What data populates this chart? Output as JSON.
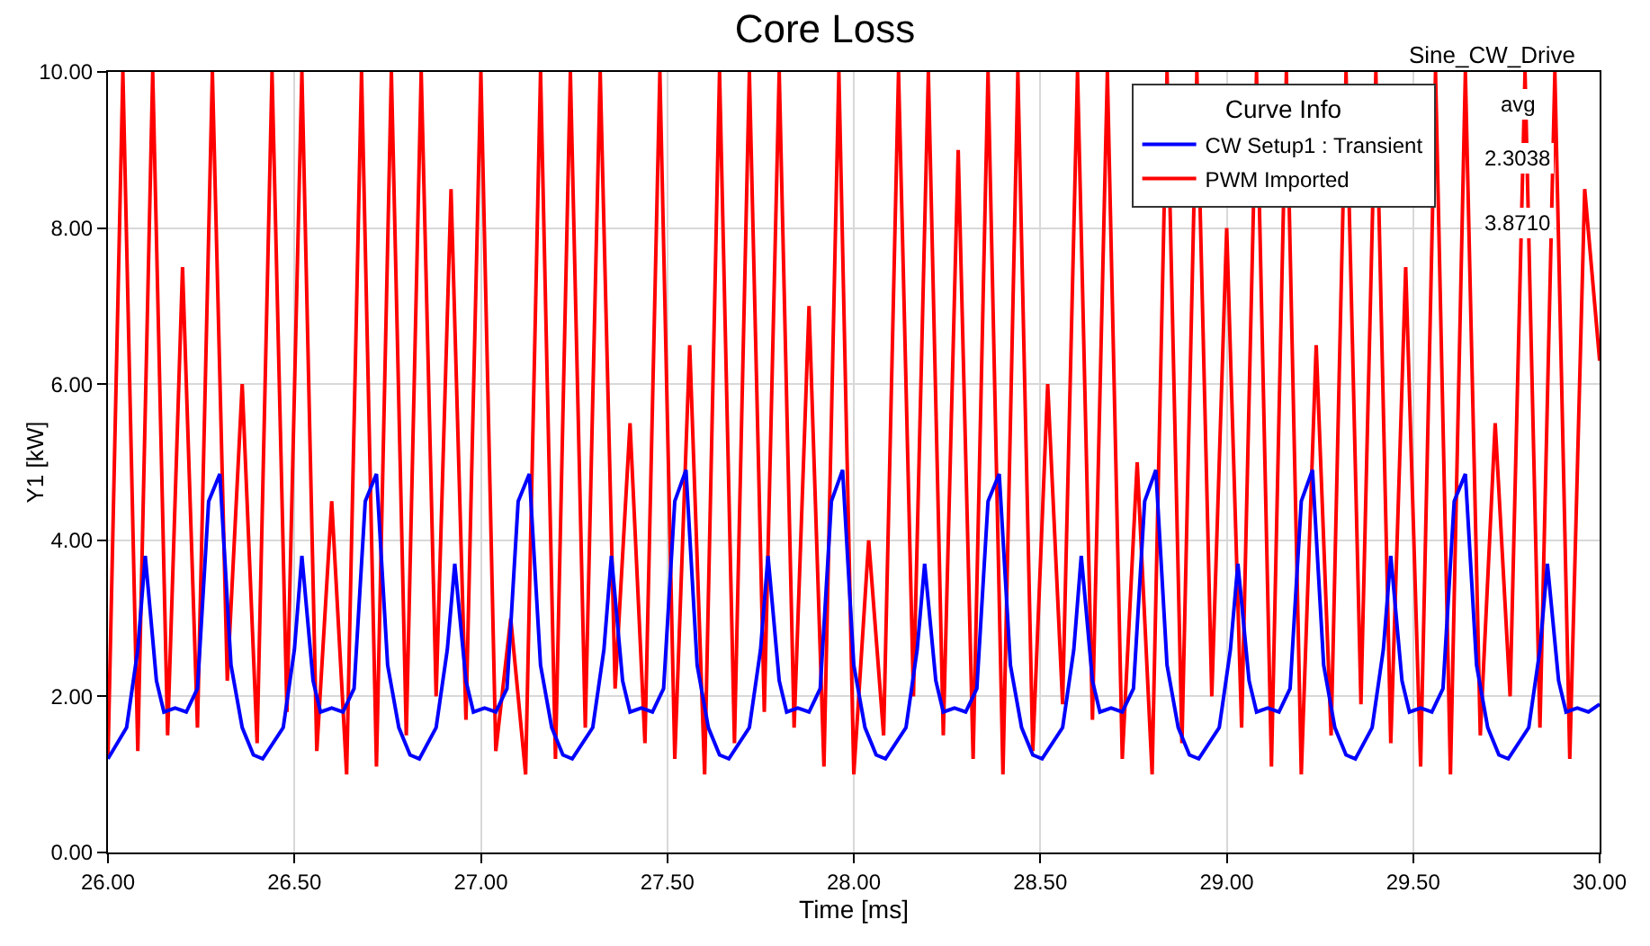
{
  "chart_data": {
    "type": "line",
    "title": "Core Loss",
    "subtitle": "Sine_CW_Drive",
    "xlabel": "Time [ms]",
    "ylabel": "Y1 [kW]",
    "legend_title": "Curve Info",
    "annotations": [
      "avg",
      "2.3038",
      "3.8710"
    ],
    "xlim": [
      26,
      30
    ],
    "ylim": [
      0,
      10
    ],
    "xticks": [
      {
        "value": 26,
        "label": "26.00"
      },
      {
        "value": 26.5,
        "label": "26.50"
      },
      {
        "value": 27,
        "label": "27.00"
      },
      {
        "value": 27.5,
        "label": "27.50"
      },
      {
        "value": 28,
        "label": "28.00"
      },
      {
        "value": 28.5,
        "label": "28.50"
      },
      {
        "value": 29,
        "label": "29.00"
      },
      {
        "value": 29.5,
        "label": "29.50"
      },
      {
        "value": 30,
        "label": "30.00"
      }
    ],
    "yticks": [
      {
        "value": 0,
        "label": "0.00"
      },
      {
        "value": 2,
        "label": "2.00"
      },
      {
        "value": 4,
        "label": "4.00"
      },
      {
        "value": 6,
        "label": "6.00"
      },
      {
        "value": 8,
        "label": "8.00"
      },
      {
        "value": 10,
        "label": "10.00"
      }
    ],
    "grid": true,
    "legend": "top right",
    "marker": "none",
    "line_style": "solid",
    "series": [
      {
        "name": "CW Setup1 : Transient",
        "color": "#0000ff",
        "x": [
          26.0,
          26.05,
          26.08,
          26.1,
          26.13,
          26.15,
          26.18,
          26.21,
          26.24,
          26.27,
          26.3,
          26.33,
          26.36,
          26.39,
          26.415,
          26.47,
          26.5,
          26.52,
          26.55,
          26.57,
          26.6,
          26.63,
          26.66,
          26.69,
          26.72,
          26.75,
          26.78,
          26.81,
          26.835,
          26.88,
          26.91,
          26.93,
          26.96,
          26.98,
          27.01,
          27.04,
          27.07,
          27.1,
          27.13,
          27.16,
          27.19,
          27.22,
          27.245,
          27.3,
          27.33,
          27.35,
          27.38,
          27.4,
          27.43,
          27.46,
          27.49,
          27.52,
          27.55,
          27.58,
          27.61,
          27.64,
          27.665,
          27.72,
          27.75,
          27.77,
          27.8,
          27.82,
          27.85,
          27.88,
          27.91,
          27.94,
          27.97,
          28.0,
          28.03,
          28.06,
          28.085,
          28.14,
          28.17,
          28.19,
          28.22,
          28.24,
          28.27,
          28.3,
          28.33,
          28.36,
          28.39,
          28.42,
          28.45,
          28.48,
          28.505,
          28.56,
          28.59,
          28.61,
          28.64,
          28.66,
          28.69,
          28.72,
          28.75,
          28.78,
          28.81,
          28.84,
          28.87,
          28.9,
          28.925,
          28.98,
          29.01,
          29.03,
          29.06,
          29.08,
          29.11,
          29.14,
          29.17,
          29.2,
          29.23,
          29.26,
          29.29,
          29.32,
          29.345,
          29.39,
          29.42,
          29.44,
          29.47,
          29.49,
          29.52,
          29.55,
          29.58,
          29.61,
          29.64,
          29.67,
          29.7,
          29.73,
          29.755,
          29.81,
          29.84,
          29.86,
          29.89,
          29.91,
          29.94,
          29.97,
          30.0
        ],
        "values": [
          1.2,
          1.6,
          2.6,
          3.8,
          2.2,
          1.8,
          1.85,
          1.8,
          2.1,
          4.5,
          4.85,
          2.4,
          1.6,
          1.25,
          1.2,
          1.6,
          2.6,
          3.8,
          2.2,
          1.8,
          1.85,
          1.8,
          2.1,
          4.5,
          4.85,
          2.4,
          1.6,
          1.25,
          1.2,
          1.6,
          2.6,
          3.7,
          2.2,
          1.8,
          1.85,
          1.8,
          2.1,
          4.5,
          4.85,
          2.4,
          1.6,
          1.25,
          1.2,
          1.6,
          2.6,
          3.8,
          2.2,
          1.8,
          1.85,
          1.8,
          2.1,
          4.5,
          4.9,
          2.4,
          1.6,
          1.25,
          1.2,
          1.6,
          2.6,
          3.8,
          2.2,
          1.8,
          1.85,
          1.8,
          2.1,
          4.5,
          4.9,
          2.4,
          1.6,
          1.25,
          1.2,
          1.6,
          2.6,
          3.7,
          2.2,
          1.8,
          1.85,
          1.8,
          2.1,
          4.5,
          4.85,
          2.4,
          1.6,
          1.25,
          1.2,
          1.6,
          2.6,
          3.8,
          2.2,
          1.8,
          1.85,
          1.8,
          2.1,
          4.5,
          4.9,
          2.4,
          1.6,
          1.25,
          1.2,
          1.6,
          2.6,
          3.7,
          2.2,
          1.8,
          1.85,
          1.8,
          2.1,
          4.5,
          4.9,
          2.4,
          1.6,
          1.25,
          1.2,
          1.6,
          2.6,
          3.8,
          2.2,
          1.8,
          1.85,
          1.8,
          2.1,
          4.5,
          4.85,
          2.4,
          1.6,
          1.25,
          1.2,
          1.6,
          2.6,
          3.7,
          2.2,
          1.8,
          1.85,
          1.8,
          1.9
        ]
      },
      {
        "name": "PWM Imported",
        "color": "#ff0000",
        "x": [
          26.0,
          26.04,
          26.08,
          26.12,
          26.16,
          26.2,
          26.24,
          26.28,
          26.32,
          26.36,
          26.4,
          26.44,
          26.48,
          26.52,
          26.56,
          26.6,
          26.64,
          26.68,
          26.72,
          26.76,
          26.8,
          26.84,
          26.88,
          26.92,
          26.96,
          27.0,
          27.04,
          27.08,
          27.12,
          27.16,
          27.2,
          27.24,
          27.28,
          27.32,
          27.36,
          27.4,
          27.44,
          27.48,
          27.52,
          27.56,
          27.6,
          27.64,
          27.68,
          27.72,
          27.76,
          27.8,
          27.84,
          27.88,
          27.92,
          27.96,
          28.0,
          28.04,
          28.08,
          28.12,
          28.16,
          28.2,
          28.24,
          28.28,
          28.32,
          28.36,
          28.4,
          28.44,
          28.48,
          28.52,
          28.56,
          28.6,
          28.64,
          28.68,
          28.72,
          28.76,
          28.8,
          28.84,
          28.88,
          28.92,
          28.96,
          29.0,
          29.04,
          29.08,
          29.12,
          29.16,
          29.2,
          29.24,
          29.28,
          29.32,
          29.36,
          29.4,
          29.44,
          29.48,
          29.52,
          29.56,
          29.6,
          29.64,
          29.68,
          29.72,
          29.76,
          29.8,
          29.84,
          29.88,
          29.92,
          29.96,
          30.0
        ],
        "values": [
          1.2,
          10,
          1.3,
          10,
          1.5,
          7.5,
          1.6,
          10,
          2.2,
          6.0,
          1.4,
          10,
          1.8,
          10,
          1.3,
          4.5,
          1.0,
          10,
          1.1,
          10,
          1.5,
          10,
          2.0,
          8.5,
          1.7,
          10,
          1.3,
          3.0,
          1.0,
          10,
          1.2,
          10,
          1.6,
          10,
          2.1,
          5.5,
          1.4,
          10,
          1.2,
          6.5,
          1.0,
          10,
          1.4,
          10,
          1.8,
          10,
          1.6,
          7.0,
          1.1,
          10,
          1.0,
          4.0,
          1.5,
          10,
          2.0,
          10,
          1.5,
          9.0,
          1.2,
          10,
          1.0,
          10,
          1.3,
          6.0,
          1.9,
          10,
          1.7,
          10,
          1.2,
          5.0,
          1.0,
          10,
          1.4,
          10,
          2.0,
          8.0,
          1.6,
          10,
          1.1,
          10,
          1.0,
          6.5,
          1.5,
          10,
          1.9,
          10,
          1.4,
          7.5,
          1.1,
          10,
          1.0,
          10,
          1.5,
          5.5,
          2.0,
          10,
          1.6,
          10,
          1.2,
          8.5,
          6.3
        ]
      }
    ]
  }
}
